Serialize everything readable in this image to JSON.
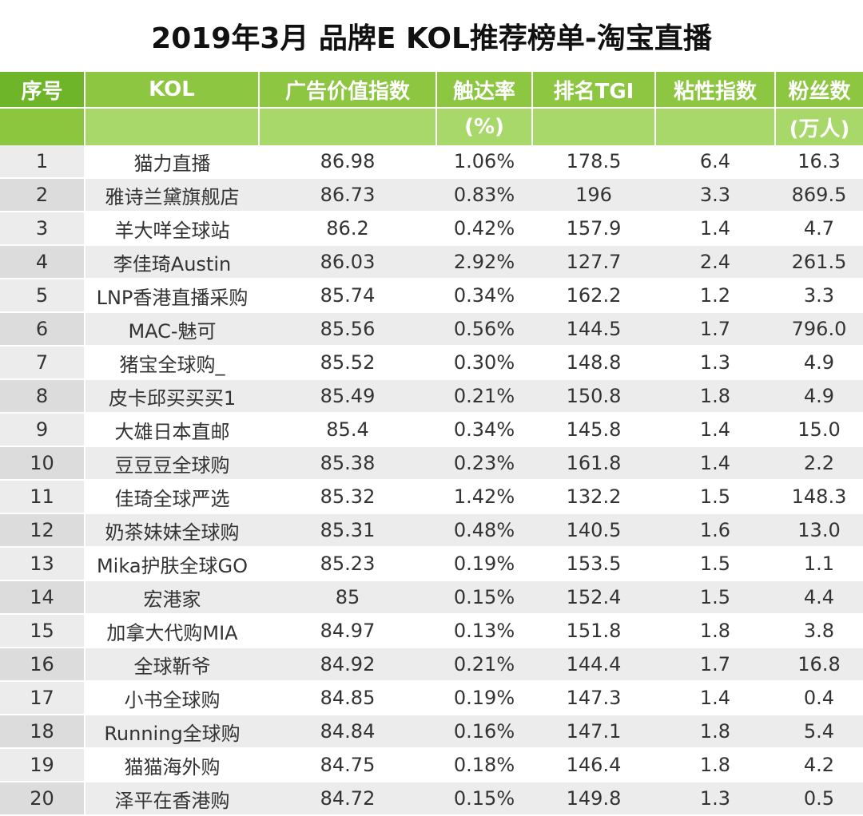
{
  "title": "2019年3月 品牌E KOL推荐榜单-淘宝直播",
  "header": {
    "row1": [
      "序号",
      "KOL",
      "广告价值指数",
      "触达率",
      "排名TGI",
      "粘性指数",
      "粉丝数"
    ],
    "row2": [
      "",
      "",
      "",
      "(%)",
      "",
      "",
      "(万人)"
    ]
  },
  "rows": [
    [
      "1",
      "猫力直播",
      "86.98",
      "1.06%",
      "178.5",
      "6.4",
      "16.3"
    ],
    [
      "2",
      "雅诗兰黛旗舰店",
      "86.73",
      "0.83%",
      "196",
      "3.3",
      "869.5"
    ],
    [
      "3",
      "羊大咩全球站",
      "86.2",
      "0.42%",
      "157.9",
      "1.4",
      "4.7"
    ],
    [
      "4",
      "李佳琦Austin",
      "86.03",
      "2.92%",
      "127.7",
      "2.4",
      "261.5"
    ],
    [
      "5",
      "LNP香港直播采购",
      "85.74",
      "0.34%",
      "162.2",
      "1.2",
      "3.3"
    ],
    [
      "6",
      "MAC-魅可",
      "85.56",
      "0.56%",
      "144.5",
      "1.7",
      "796.0"
    ],
    [
      "7",
      "猪宝全球购_",
      "85.52",
      "0.30%",
      "148.8",
      "1.3",
      "4.9"
    ],
    [
      "8",
      "皮卡邱买买买1",
      "85.49",
      "0.21%",
      "150.8",
      "1.8",
      "4.9"
    ],
    [
      "9",
      "大雄日本直邮",
      "85.4",
      "0.34%",
      "145.8",
      "1.4",
      "15.0"
    ],
    [
      "10",
      "豆豆豆全球购",
      "85.38",
      "0.23%",
      "161.8",
      "1.4",
      "2.2"
    ],
    [
      "11",
      "佳琦全球严选",
      "85.32",
      "1.42%",
      "132.2",
      "1.5",
      "148.3"
    ],
    [
      "12",
      "奶茶妹妹全球购",
      "85.31",
      "0.48%",
      "140.5",
      "1.6",
      "13.0"
    ],
    [
      "13",
      "Mika护肤全球GO",
      "85.23",
      "0.19%",
      "153.5",
      "1.5",
      "1.1"
    ],
    [
      "14",
      "宏港家",
      "85",
      "0.15%",
      "152.4",
      "1.5",
      "4.4"
    ],
    [
      "15",
      "加拿大代购MIA",
      "84.97",
      "0.13%",
      "151.8",
      "1.8",
      "3.8"
    ],
    [
      "16",
      "全球靳爷",
      "84.92",
      "0.21%",
      "144.4",
      "1.7",
      "16.8"
    ],
    [
      "17",
      "小书全球购",
      "84.85",
      "0.19%",
      "147.3",
      "1.4",
      "0.4"
    ],
    [
      "18",
      "Running全球购",
      "84.84",
      "0.16%",
      "147.1",
      "1.8",
      "5.4"
    ],
    [
      "19",
      "猫猫海外购",
      "84.75",
      "0.18%",
      "146.4",
      "1.8",
      "4.2"
    ],
    [
      "20",
      "泽平在香港购",
      "84.72",
      "0.15%",
      "149.8",
      "1.3",
      "0.5"
    ]
  ]
}
